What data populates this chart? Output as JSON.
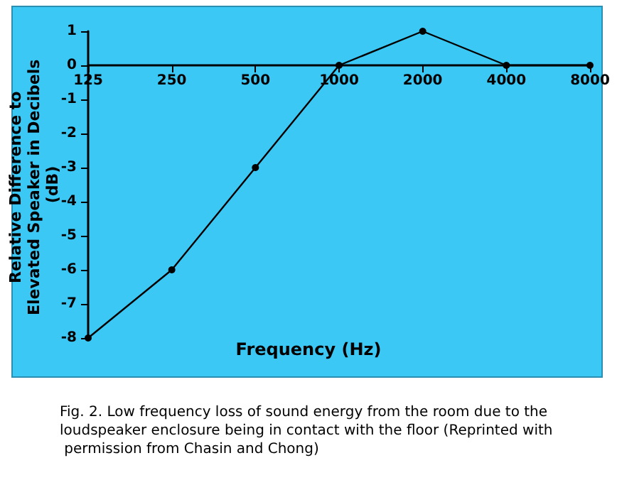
{
  "chart_data": {
    "type": "line",
    "xlabel": "Frequency (Hz)",
    "ylabel": "Relative Difference to Elevated Speaker in Decibels (dB)",
    "categories": [
      "125",
      "250",
      "500",
      "1000",
      "2000",
      "4000",
      "8000"
    ],
    "series": [
      {
        "color": "#000000",
        "values": [
          -8,
          -6,
          -3,
          0,
          1,
          0,
          0
        ]
      }
    ],
    "ylim": [
      -8,
      1
    ],
    "yticks": [
      -8,
      -7,
      -6,
      -5,
      -4,
      -3,
      -2,
      -1,
      0,
      1
    ],
    "marker": "circle",
    "line_style": "solid",
    "annotations": [
      "Fig. 2. Low frequency loss of sound energy from the room due to the loudspeaker enclosure being in contact with the floor (Reprinted with permission from Chasin and Chong)"
    ]
  }
}
